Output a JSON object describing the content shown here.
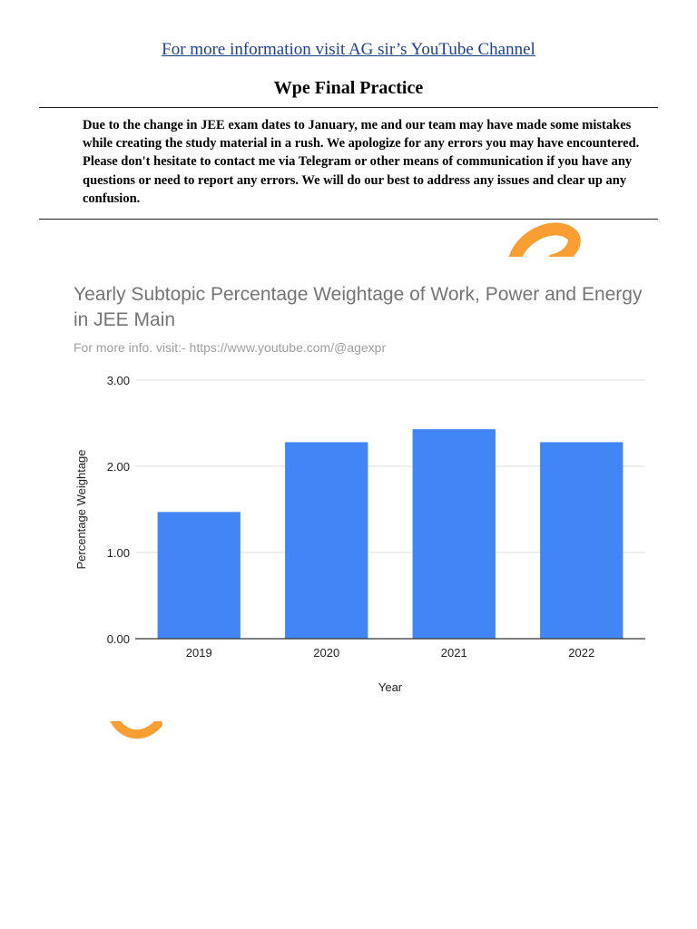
{
  "header": {
    "link_text": "For more information visit AG sir’s YouTube Channel",
    "title": "Wpe Final Practice"
  },
  "notice": {
    "text": "Due to the change in JEE exam dates to January, me and our team may have made some mistakes while creating the study material in a rush. We apologize for any errors you may have encountered. Please don't hesitate to contact me via Telegram or other means of communication if you have any questions or need to report any errors. We will do our best to address any issues and clear up any confusion."
  },
  "colors": {
    "bar": "#4285f4",
    "watermark": "#f7941d",
    "link": "#1f3f8f"
  },
  "chart_data": {
    "type": "bar",
    "title": "Yearly Subtopic Percentage Weightage of Work, Power and Energy in JEE Main",
    "subtitle": "For more info. visit:- https://www.youtube.com/@agexpr",
    "categories": [
      "2019",
      "2020",
      "2021",
      "2022"
    ],
    "values": [
      1.47,
      2.28,
      2.43,
      2.28
    ],
    "xlabel": "Year",
    "ylabel": "Percentage Weightage",
    "ylim": [
      0,
      3
    ],
    "yticks": [
      "0.00",
      "1.00",
      "2.00",
      "3.00"
    ],
    "grid": true
  }
}
